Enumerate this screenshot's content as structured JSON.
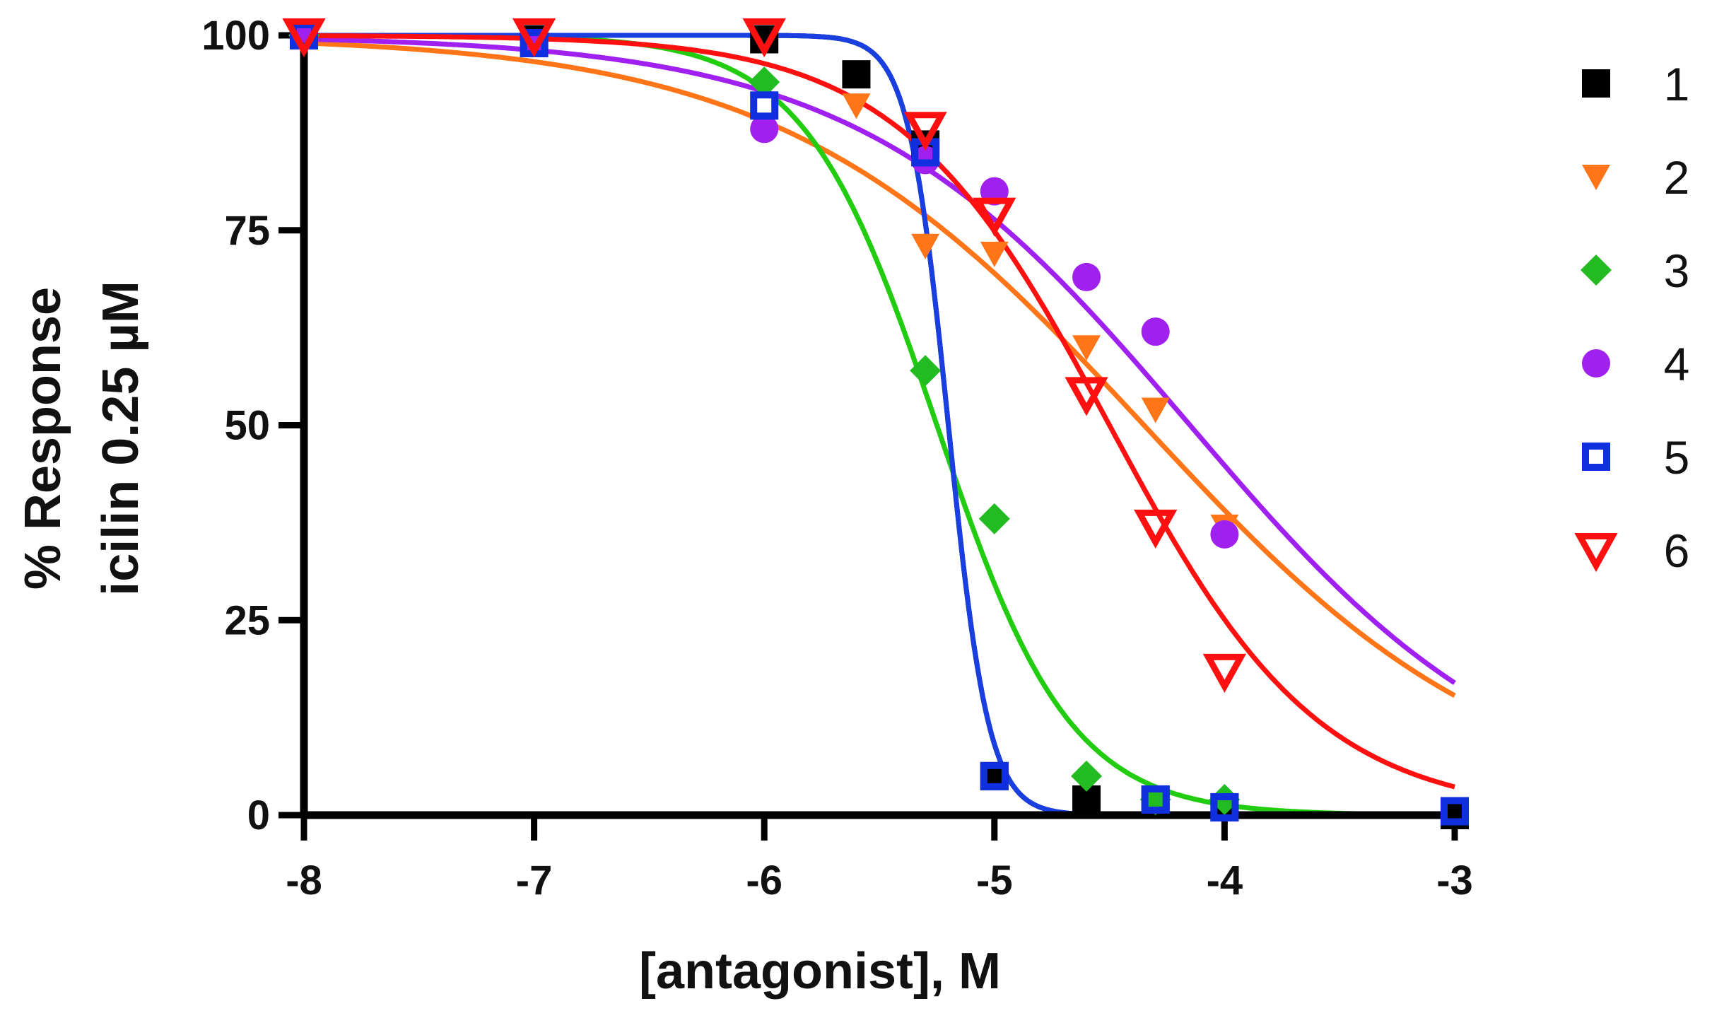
{
  "chart_data": {
    "type": "scatter",
    "title": "",
    "xlabel": "[antagonist], M",
    "ylabel_lines": [
      "% Response",
      "icilin 0.25 µM"
    ],
    "xlim": [
      -8,
      -3
    ],
    "ylim": [
      0,
      100
    ],
    "xticks": [
      "-8",
      "-7",
      "-6",
      "-5",
      "-4",
      "-3"
    ],
    "yticks": [
      "0",
      "25",
      "50",
      "75",
      "100"
    ],
    "legend_position": "right",
    "series": [
      {
        "name": "1",
        "marker": "filled-square",
        "color": "#000000",
        "curve_color": "#000000",
        "fit": {
          "bottom": 0,
          "top": 100,
          "logIC50": -5.2,
          "hill": -5
        },
        "points": [
          {
            "x": -8,
            "y": 100
          },
          {
            "x": -7,
            "y": 99.5
          },
          {
            "x": -6,
            "y": 99.5
          },
          {
            "x": -5.6,
            "y": 95
          },
          {
            "x": -5.3,
            "y": 86
          },
          {
            "x": -5,
            "y": 5
          },
          {
            "x": -4.6,
            "y": 2
          },
          {
            "x": -4.3,
            "y": 2
          },
          {
            "x": -4,
            "y": 1
          },
          {
            "x": -3,
            "y": 0
          }
        ]
      },
      {
        "name": "2",
        "marker": "filled-triangle-down",
        "color": "#ff7518",
        "curve_color": "#ff7518",
        "fit": {
          "bottom": 0,
          "top": 100,
          "logIC50": -4.35,
          "hill": -0.55
        },
        "points": [
          {
            "x": -8,
            "y": 100
          },
          {
            "x": -7,
            "y": 99
          },
          {
            "x": -5.6,
            "y": 91
          },
          {
            "x": -5.3,
            "y": 73
          },
          {
            "x": -5,
            "y": 72
          },
          {
            "x": -4.6,
            "y": 60
          },
          {
            "x": -4.3,
            "y": 52
          },
          {
            "x": -4,
            "y": 37
          }
        ]
      },
      {
        "name": "3",
        "marker": "filled-diamond",
        "color": "#22bb22",
        "curve_color": "#22cc11",
        "fit": {
          "bottom": 0,
          "top": 100,
          "logIC50": -5.25,
          "hill": -1.5
        },
        "points": [
          {
            "x": -8,
            "y": 100
          },
          {
            "x": -6,
            "y": 94
          },
          {
            "x": -5.3,
            "y": 57
          },
          {
            "x": -5,
            "y": 38
          },
          {
            "x": -4.6,
            "y": 5
          },
          {
            "x": -4.3,
            "y": 2
          },
          {
            "x": -4,
            "y": 2
          }
        ]
      },
      {
        "name": "4",
        "marker": "filled-circle",
        "color": "#a020f0",
        "curve_color": "#a020f0",
        "fit": {
          "bottom": 0,
          "top": 100,
          "logIC50": -4.15,
          "hill": -0.6
        },
        "points": [
          {
            "x": -8,
            "y": 100
          },
          {
            "x": -7,
            "y": 99
          },
          {
            "x": -6,
            "y": 88
          },
          {
            "x": -5.3,
            "y": 84
          },
          {
            "x": -5,
            "y": 80
          },
          {
            "x": -4.6,
            "y": 69
          },
          {
            "x": -4.3,
            "y": 62
          },
          {
            "x": -4,
            "y": 36
          }
        ]
      },
      {
        "name": "5",
        "marker": "open-square",
        "color": "#1030e0",
        "curve_color": "#1a3fe0",
        "fit": {
          "bottom": 0,
          "top": 100,
          "logIC50": -5.2,
          "hill": -5
        },
        "points": [
          {
            "x": -8,
            "y": 100
          },
          {
            "x": -7,
            "y": 99
          },
          {
            "x": -6,
            "y": 91
          },
          {
            "x": -5.3,
            "y": 85
          },
          {
            "x": -5,
            "y": 5
          },
          {
            "x": -4.3,
            "y": 2
          },
          {
            "x": -4,
            "y": 1
          },
          {
            "x": -3,
            "y": 0.5
          }
        ]
      },
      {
        "name": "6",
        "marker": "open-triangle-down",
        "color": "#ff1010",
        "curve_color": "#ff1010",
        "fit": {
          "bottom": 0,
          "top": 100,
          "logIC50": -4.5,
          "hill": -0.95
        },
        "points": [
          {
            "x": -8,
            "y": 100
          },
          {
            "x": -7,
            "y": 100
          },
          {
            "x": -6,
            "y": 100
          },
          {
            "x": -5.3,
            "y": 88
          },
          {
            "x": -5,
            "y": 77
          },
          {
            "x": -4.6,
            "y": 54
          },
          {
            "x": -4.3,
            "y": 37
          },
          {
            "x": -4,
            "y": 18.5
          }
        ]
      }
    ]
  }
}
